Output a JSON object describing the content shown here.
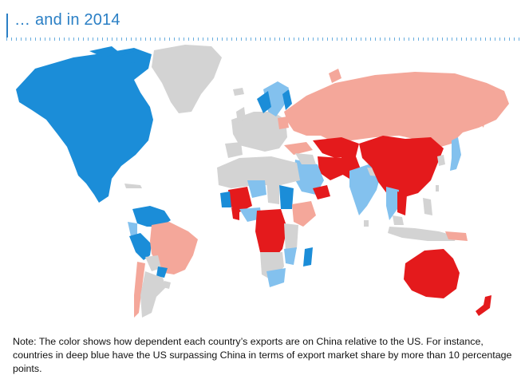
{
  "header": {
    "title": "… and in 2014"
  },
  "map": {
    "colors": {
      "deep_blue": "#1b8dd8",
      "light_blue": "#83c1ee",
      "light_red": "#f4a79a",
      "deep_red": "#e41a1c",
      "grey": "#d3d3d3"
    }
  },
  "note": {
    "text": "Note: The color shows how dependent each country’s exports are on China relative to the US. For instance, countries in deep blue have the US surpassing China in terms of export market share by more than 10 percentage points."
  }
}
